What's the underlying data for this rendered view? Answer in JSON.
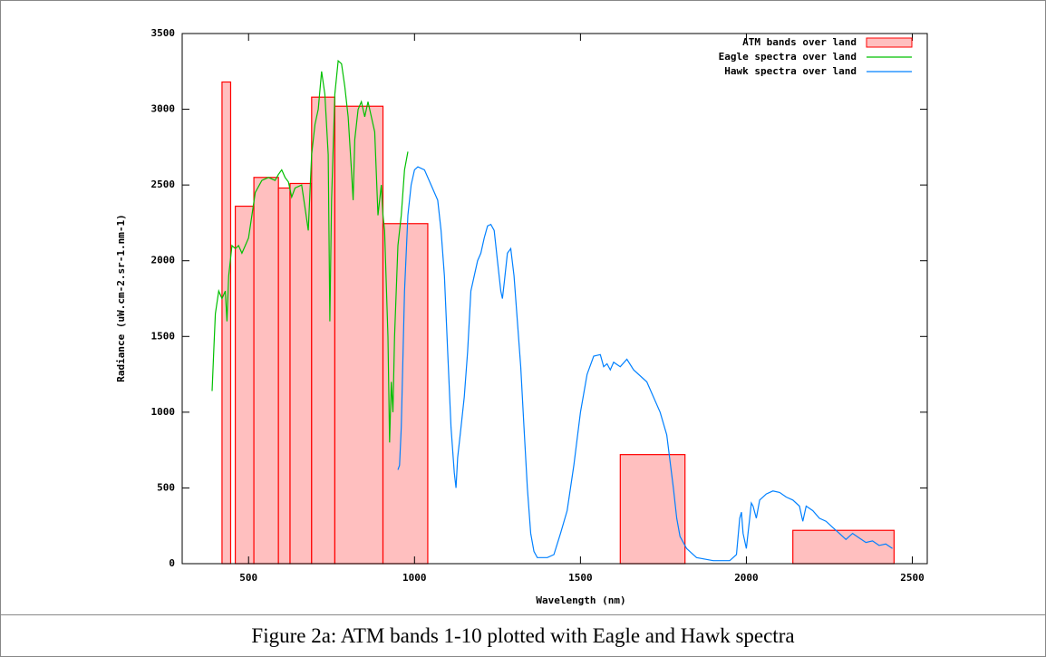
{
  "chart_data": {
    "type": "band-spectra",
    "xlabel": "Wavelength (nm)",
    "ylabel": "Radiance (uW.cm-2.sr-1.nm-1)",
    "xlim": [
      300,
      2545
    ],
    "ylim": [
      0,
      3500
    ],
    "xticks": [
      500,
      1000,
      1500,
      2000,
      2500
    ],
    "yticks": [
      0,
      500,
      1000,
      1500,
      2000,
      2500,
      3000,
      3500
    ],
    "legend": "top-right",
    "bands": {
      "name": "ATM bands over land",
      "color": "#ff0000",
      "fill": "#ffbfbf",
      "x_start": [
        420,
        460,
        516,
        590,
        625,
        690,
        760,
        905,
        1620,
        2140
      ],
      "x_end": [
        446,
        516,
        590,
        625,
        690,
        760,
        905,
        1040,
        1815,
        2445
      ],
      "values": [
        3180,
        2360,
        2550,
        2480,
        2510,
        3080,
        3020,
        2245,
        720,
        220
      ]
    },
    "series": [
      {
        "name": "Eagle spectra over land",
        "color": "#00c000",
        "x": [
          390,
          395,
          400,
          410,
          420,
          430,
          435,
          440,
          450,
          460,
          470,
          480,
          490,
          500,
          510,
          520,
          540,
          560,
          580,
          590,
          600,
          610,
          620,
          630,
          640,
          660,
          670,
          680,
          690,
          700,
          710,
          720,
          730,
          740,
          745,
          750,
          760,
          770,
          780,
          790,
          800,
          810,
          815,
          820,
          830,
          840,
          850,
          860,
          870,
          880,
          890,
          900,
          905,
          910,
          920,
          925,
          930,
          935,
          940,
          950,
          960,
          970,
          980
        ],
        "values": [
          1140,
          1400,
          1650,
          1800,
          1750,
          1800,
          1600,
          1900,
          2100,
          2080,
          2100,
          2050,
          2100,
          2150,
          2300,
          2450,
          2530,
          2550,
          2530,
          2570,
          2600,
          2550,
          2520,
          2420,
          2480,
          2500,
          2350,
          2200,
          2700,
          2900,
          3000,
          3250,
          3100,
          2700,
          1600,
          2400,
          3100,
          3320,
          3300,
          3150,
          2950,
          2600,
          2400,
          2800,
          3000,
          3050,
          2950,
          3050,
          2950,
          2850,
          2300,
          2500,
          2300,
          2200,
          1500,
          800,
          1200,
          1000,
          1500,
          2100,
          2300,
          2600,
          2720
        ]
      },
      {
        "name": "Hawk spectra over land",
        "color": "#0080ff",
        "x": [
          950,
          955,
          960,
          970,
          980,
          990,
          1000,
          1010,
          1030,
          1050,
          1070,
          1080,
          1090,
          1100,
          1110,
          1120,
          1125,
          1130,
          1140,
          1150,
          1160,
          1170,
          1180,
          1190,
          1200,
          1210,
          1220,
          1230,
          1240,
          1250,
          1260,
          1265,
          1270,
          1280,
          1290,
          1300,
          1310,
          1320,
          1330,
          1340,
          1350,
          1360,
          1370,
          1400,
          1420,
          1440,
          1460,
          1480,
          1500,
          1520,
          1540,
          1560,
          1570,
          1580,
          1590,
          1600,
          1620,
          1640,
          1660,
          1700,
          1740,
          1760,
          1780,
          1790,
          1800,
          1820,
          1850,
          1900,
          1950,
          1970,
          1980,
          1985,
          1990,
          2000,
          2010,
          2015,
          2020,
          2030,
          2040,
          2060,
          2080,
          2100,
          2120,
          2140,
          2160,
          2170,
          2180,
          2200,
          2220,
          2240,
          2260,
          2280,
          2300,
          2320,
          2340,
          2360,
          2380,
          2400,
          2420,
          2440
        ],
        "values": [
          620,
          650,
          900,
          1800,
          2300,
          2500,
          2600,
          2620,
          2600,
          2500,
          2400,
          2200,
          1900,
          1400,
          900,
          600,
          500,
          700,
          900,
          1100,
          1400,
          1800,
          1900,
          2000,
          2050,
          2150,
          2230,
          2240,
          2200,
          2000,
          1800,
          1750,
          1850,
          2050,
          2080,
          1900,
          1600,
          1300,
          900,
          500,
          200,
          80,
          40,
          40,
          60,
          200,
          350,
          650,
          1000,
          1250,
          1370,
          1380,
          1300,
          1320,
          1280,
          1330,
          1300,
          1350,
          1280,
          1200,
          1000,
          850,
          500,
          300,
          180,
          100,
          40,
          20,
          20,
          60,
          300,
          340,
          200,
          100,
          300,
          400,
          380,
          300,
          420,
          460,
          480,
          470,
          440,
          420,
          380,
          280,
          380,
          350,
          300,
          280,
          240,
          200,
          160,
          200,
          170,
          140,
          150,
          120,
          130,
          100
        ]
      }
    ]
  },
  "caption": "Figure 2a: ATM bands 1-10 plotted with Eagle and Hawk spectra"
}
